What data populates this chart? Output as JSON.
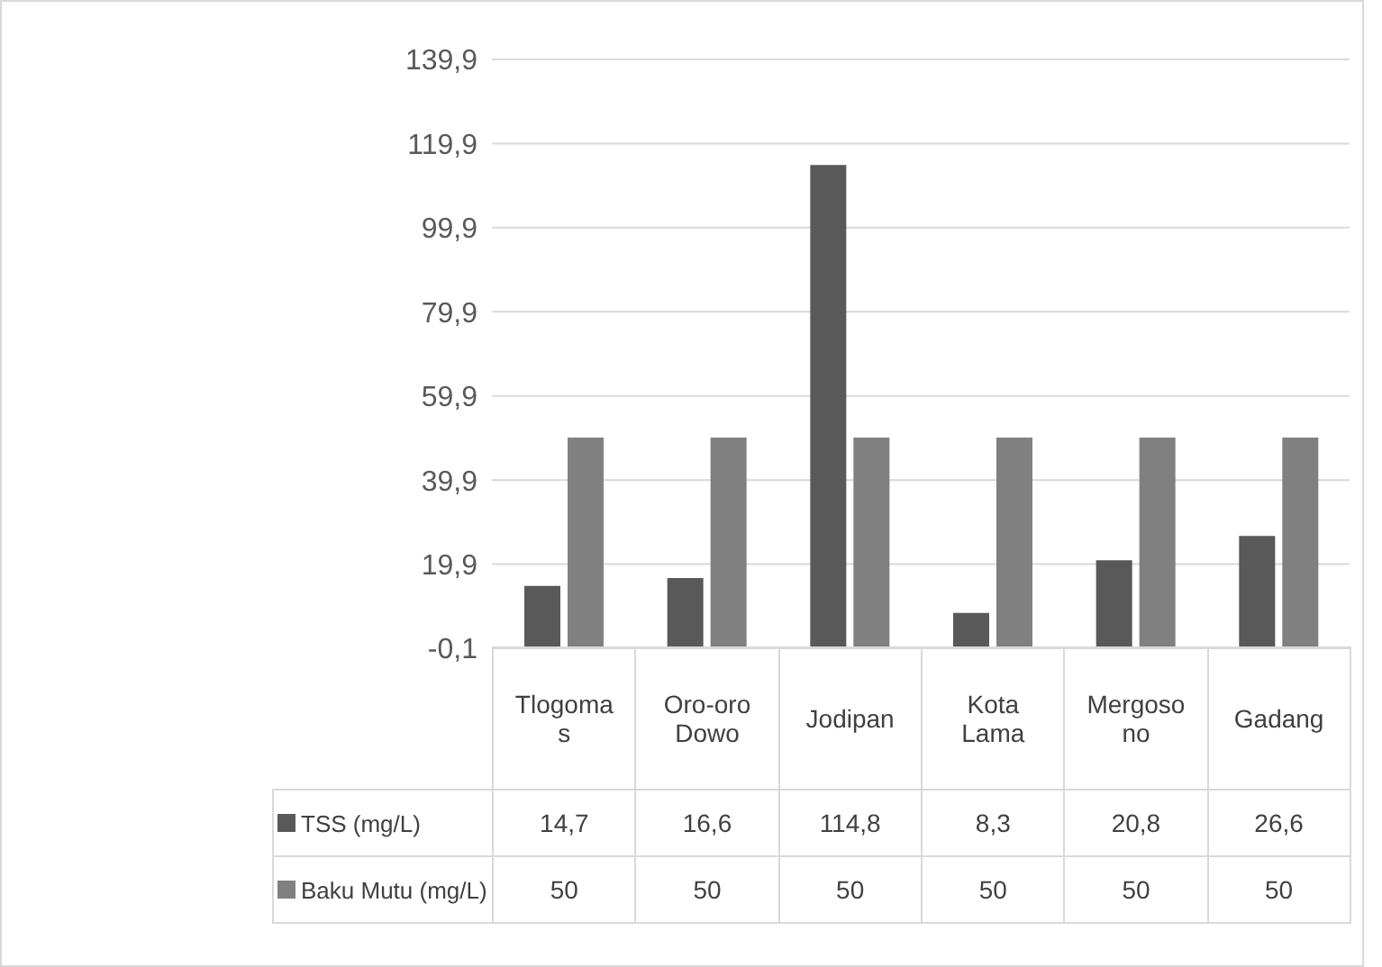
{
  "chart_data": {
    "type": "bar",
    "categories": [
      "Tlogomas",
      "Oro-oro Dowo",
      "Jodipan",
      "Kota Lama",
      "Mergosono",
      "Gadang"
    ],
    "series": [
      {
        "name": "TSS (mg/L)",
        "color": "#595959",
        "values": [
          14.7,
          16.6,
          114.8,
          8.3,
          20.8,
          26.6
        ],
        "value_labels": [
          "14,7",
          "16,6",
          "114,8",
          "8,3",
          "20,8",
          "26,6"
        ]
      },
      {
        "name": "Baku Mutu (mg/L)",
        "color": "#808080",
        "values": [
          50,
          50,
          50,
          50,
          50,
          50
        ],
        "value_labels": [
          "50",
          "50",
          "50",
          "50",
          "50",
          "50"
        ]
      }
    ],
    "ylim": [
      -0.1,
      139.9
    ],
    "yticks": [
      {
        "value": -0.1,
        "label": "-0,1"
      },
      {
        "value": 19.9,
        "label": "19,9"
      },
      {
        "value": 39.9,
        "label": "39,9"
      },
      {
        "value": 59.9,
        "label": "59,9"
      },
      {
        "value": 79.9,
        "label": "79,9"
      },
      {
        "value": 99.9,
        "label": "99,9"
      },
      {
        "value": 119.9,
        "label": "119,9"
      },
      {
        "value": 139.9,
        "label": "139,9"
      }
    ],
    "grid": "y",
    "legend": "bottom"
  }
}
